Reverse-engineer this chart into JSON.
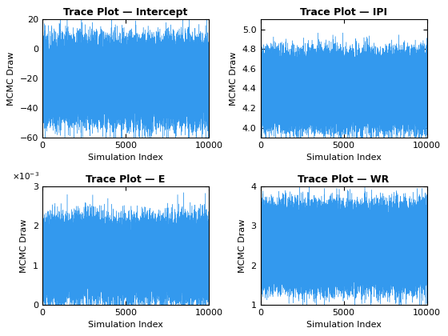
{
  "titles": [
    "Trace Plot — Intercept",
    "Trace Plot — IPI",
    "Trace Plot — E",
    "Trace Plot — WR"
  ],
  "xlabel": "Simulation Index",
  "ylabel": "MCMC Draw",
  "n_samples": 10000,
  "intercept": {
    "mean_hi": -5,
    "mean_lo": -40,
    "std": 8,
    "ylim": [
      -60,
      20
    ],
    "yticks": [
      20,
      0,
      -20,
      -40,
      -60
    ]
  },
  "ipi": {
    "mean_hi": 4.65,
    "mean_lo": 4.1,
    "std": 0.09,
    "ylim": [
      3.9,
      5.1
    ],
    "yticks": [
      4.0,
      4.2,
      4.4,
      4.6,
      4.8,
      5.0
    ]
  },
  "e": {
    "mean_hi": 0.00175,
    "mean_lo": 0.0005,
    "std": 0.0003,
    "ylim": [
      0,
      0.003
    ],
    "yticks": [
      0,
      0.001,
      0.002,
      0.003
    ]
  },
  "wr": {
    "mean_hi": 3.2,
    "mean_lo": 1.7,
    "std": 0.25,
    "ylim": [
      1.0,
      4.0
    ],
    "yticks": [
      1,
      2,
      3,
      4
    ]
  },
  "line_color": "#3399ee",
  "line_width": 0.3,
  "figsize": [
    5.6,
    4.2
  ],
  "dpi": 100,
  "seed": 42
}
